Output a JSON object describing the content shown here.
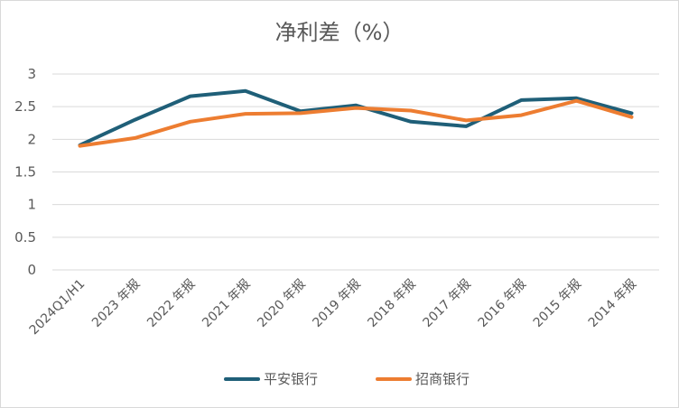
{
  "chart_data": {
    "type": "line",
    "title": "净利差（%）",
    "xlabel": "",
    "ylabel": "",
    "categories": [
      "2024Q1/H1",
      "2023 年报",
      "2022 年报",
      "2021 年报",
      "2020 年报",
      "2019 年报",
      "2018 年报",
      "2017 年报",
      "2016 年报",
      "2015 年报",
      "2014 年报"
    ],
    "ylim": [
      0,
      3
    ],
    "yticks": [
      "0",
      "0.5",
      "1",
      "1.5",
      "2",
      "2.5",
      "3"
    ],
    "grid": true,
    "legend_position": "bottom",
    "series": [
      {
        "name": "平安银行",
        "color": "#1f5f78",
        "values": [
          1.91,
          2.3,
          2.66,
          2.74,
          2.43,
          2.52,
          2.27,
          2.2,
          2.6,
          2.63,
          2.4
        ]
      },
      {
        "name": "招商银行",
        "color": "#ed7d31",
        "values": [
          1.9,
          2.02,
          2.27,
          2.39,
          2.4,
          2.48,
          2.44,
          2.29,
          2.37,
          2.59,
          2.34
        ]
      }
    ]
  }
}
